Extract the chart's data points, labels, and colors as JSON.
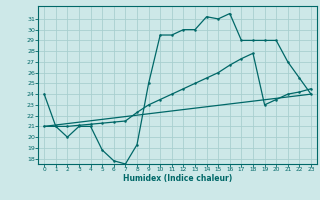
{
  "xlabel": "Humidex (Indice chaleur)",
  "bg_color": "#cde8e8",
  "grid_color": "#a8cfcf",
  "line_color": "#006868",
  "x_ticks": [
    0,
    1,
    2,
    3,
    4,
    5,
    6,
    7,
    8,
    9,
    10,
    11,
    12,
    13,
    14,
    15,
    16,
    17,
    18,
    19,
    20,
    21,
    22,
    23
  ],
  "y_ticks": [
    18,
    19,
    20,
    21,
    22,
    23,
    24,
    25,
    26,
    27,
    28,
    29,
    30,
    31
  ],
  "ylim": [
    17.5,
    32.2
  ],
  "xlim": [
    -0.5,
    23.5
  ],
  "line1_x": [
    0,
    1,
    2,
    3,
    4,
    5,
    6,
    7,
    8,
    9,
    10,
    11,
    12,
    13,
    14,
    15,
    16,
    17,
    18,
    19,
    20,
    21,
    22,
    23
  ],
  "line1_y": [
    24.0,
    21.0,
    20.0,
    21.0,
    21.0,
    18.8,
    17.8,
    17.5,
    19.3,
    25.0,
    29.5,
    29.5,
    30.0,
    30.0,
    31.2,
    31.0,
    31.5,
    29.0,
    29.0,
    29.0,
    29.0,
    27.0,
    25.5,
    24.0
  ],
  "line2_x": [
    0,
    1,
    2,
    3,
    4,
    5,
    6,
    7,
    8,
    9,
    10,
    11,
    12,
    13,
    14,
    15,
    16,
    17,
    18,
    19,
    20,
    21,
    22,
    23
  ],
  "line2_y": [
    21.0,
    21.0,
    21.0,
    21.1,
    21.2,
    21.3,
    21.4,
    21.5,
    22.3,
    23.0,
    23.5,
    24.0,
    24.5,
    25.0,
    25.5,
    26.0,
    26.7,
    27.3,
    27.8,
    23.0,
    23.5,
    24.0,
    24.2,
    24.5
  ],
  "line3_x": [
    0,
    23
  ],
  "line3_y": [
    21.0,
    24.0
  ]
}
